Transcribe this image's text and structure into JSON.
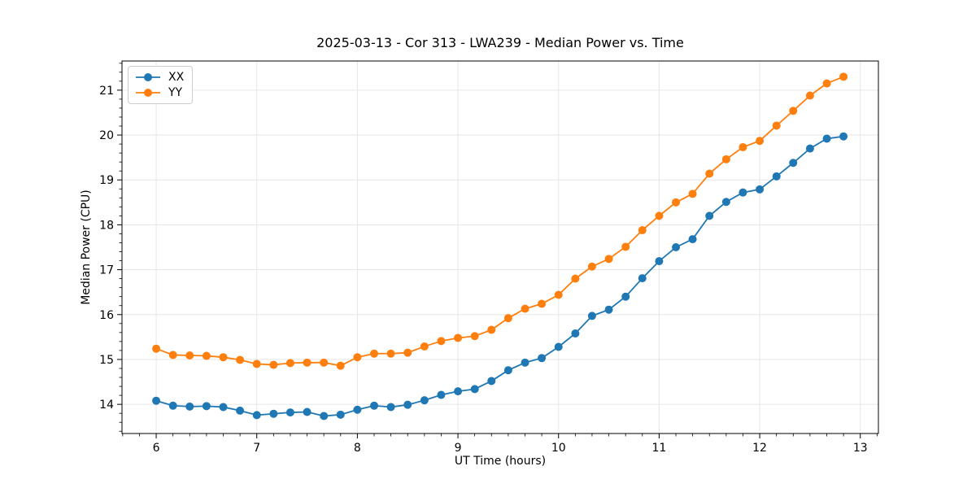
{
  "chart_data": {
    "type": "line",
    "title": "2025-03-13 - Cor 313 - LWA239 - Median Power vs. Time",
    "xlabel": "UT Time (hours)",
    "ylabel": "Median Power (CPU)",
    "grid": true,
    "legend_position": "upper left",
    "marker": "o",
    "xlim": [
      5.66,
      13.18
    ],
    "ylim": [
      13.35,
      21.65
    ],
    "x_ticks": [
      6,
      7,
      8,
      9,
      10,
      11,
      12,
      13
    ],
    "y_ticks": [
      14,
      15,
      16,
      17,
      18,
      19,
      20,
      21
    ],
    "x_minor_step": 0.1666667,
    "y_minor_step": 0.2,
    "x": [
      6.0,
      6.167,
      6.333,
      6.5,
      6.667,
      6.833,
      7.0,
      7.167,
      7.333,
      7.5,
      7.667,
      7.833,
      8.0,
      8.167,
      8.333,
      8.5,
      8.667,
      8.833,
      9.0,
      9.167,
      9.333,
      9.5,
      9.667,
      9.833,
      10.0,
      10.167,
      10.333,
      10.5,
      10.667,
      10.833,
      11.0,
      11.167,
      11.333,
      11.5,
      11.667,
      11.833,
      12.0,
      12.167,
      12.333,
      12.5,
      12.667,
      12.833
    ],
    "series": [
      {
        "name": "XX",
        "color": "#1f77b4",
        "values": [
          14.08,
          13.97,
          13.95,
          13.96,
          13.94,
          13.86,
          13.76,
          13.79,
          13.82,
          13.83,
          13.74,
          13.77,
          13.88,
          13.97,
          13.94,
          13.99,
          14.09,
          14.21,
          14.29,
          14.34,
          14.52,
          14.76,
          14.93,
          15.03,
          15.28,
          15.58,
          15.97,
          16.11,
          16.4,
          16.81,
          17.19,
          17.5,
          17.68,
          18.2,
          18.51,
          18.72,
          18.79,
          19.08,
          19.38,
          19.7,
          19.92,
          19.97
        ]
      },
      {
        "name": "YY",
        "color": "#ff7f0e",
        "values": [
          15.24,
          15.1,
          15.09,
          15.08,
          15.05,
          14.99,
          14.9,
          14.88,
          14.92,
          14.93,
          14.93,
          14.86,
          15.05,
          15.13,
          15.13,
          15.15,
          15.29,
          15.41,
          15.48,
          15.52,
          15.66,
          15.92,
          16.13,
          16.24,
          16.44,
          16.8,
          17.07,
          17.24,
          17.51,
          17.88,
          18.2,
          18.5,
          18.69,
          19.14,
          19.46,
          19.73,
          19.87,
          20.21,
          20.54,
          20.88,
          21.15,
          21.3
        ]
      }
    ]
  }
}
